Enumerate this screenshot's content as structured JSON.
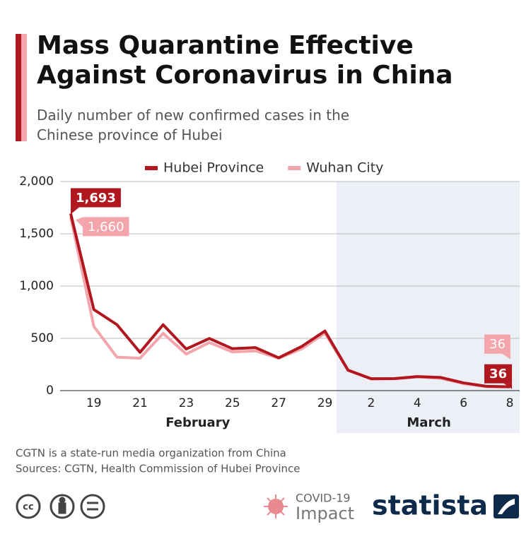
{
  "chart_data": {
    "type": "line",
    "title": "Mass Quarantine Effective Against Coronavirus in China",
    "subtitle": "Daily number of new confirmed cases in the Chinese province of Hubei",
    "categories": [
      null,
      "19",
      null,
      "21",
      null,
      "23",
      null,
      "25",
      null,
      "27",
      null,
      "29",
      null,
      "2",
      null,
      "4",
      null,
      "6",
      null,
      "8"
    ],
    "x_groups": [
      "February",
      "March"
    ],
    "series": [
      {
        "name": "Hubei Province",
        "color": "#b0171f",
        "values": [
          1693,
          776,
          631,
          366,
          630,
          398,
          499,
          401,
          411,
          314,
          423,
          570,
          196,
          114,
          115,
          134,
          126,
          74,
          41,
          36
        ],
        "value_labels": [
          "1,693",
          null,
          null,
          null,
          null,
          null,
          null,
          null,
          null,
          null,
          null,
          null,
          null,
          null,
          null,
          null,
          null,
          null,
          null,
          "36"
        ]
      },
      {
        "name": "Wuhan City",
        "color": "#f4a5ab",
        "values": [
          1660,
          615,
          320,
          310,
          547,
          350,
          460,
          370,
          380,
          310,
          400,
          550,
          193,
          111,
          114,
          131,
          118,
          67,
          37,
          36
        ],
        "value_labels": [
          "1,660",
          null,
          null,
          null,
          null,
          null,
          null,
          null,
          null,
          null,
          null,
          null,
          null,
          null,
          null,
          null,
          null,
          null,
          null,
          "36"
        ]
      }
    ],
    "ylim": [
      0,
      2000
    ],
    "yticks": [
      0,
      500,
      {
        "value": 1000,
        "label": "1,000"
      },
      {
        "value": 1500,
        "label": "1,500"
      },
      {
        "value": 2000,
        "label": "2,000"
      }
    ],
    "grid": true,
    "legend": "top",
    "notes": [
      "CGTN  is a state-run media organization from China",
      "Sources: CGTN, Health Commission of Hubei Province"
    ],
    "badge": [
      "COVID-19",
      "Impact"
    ],
    "brand": "statista"
  }
}
